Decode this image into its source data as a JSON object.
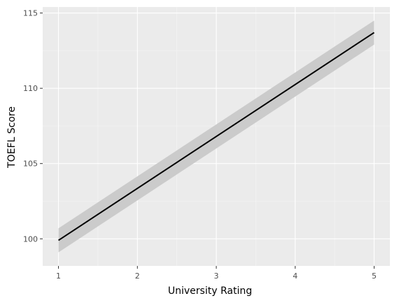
{
  "chart_data": {
    "type": "line",
    "title": "",
    "xlabel": "University Rating",
    "ylabel": "TOEFL Score",
    "xlim": [
      0.8,
      5.2
    ],
    "ylim": [
      98.2,
      115.4
    ],
    "x_ticks": [
      1,
      2,
      3,
      4,
      5
    ],
    "y_ticks": [
      100,
      105,
      110,
      115
    ],
    "grid": true,
    "legend": "none",
    "series": [
      {
        "x": [
          1,
          5
        ],
        "y": [
          99.9,
          113.7
        ],
        "ci_lower": [
          99.1,
          112.9
        ],
        "ci_upper": [
          100.7,
          114.5
        ]
      }
    ],
    "colors": {
      "panel_background": "#EBEBEB",
      "grid_major": "#FFFFFF",
      "grid_minor": "#F5F5F5",
      "line": "#000000",
      "ribbon": "#CBCBCB"
    }
  }
}
